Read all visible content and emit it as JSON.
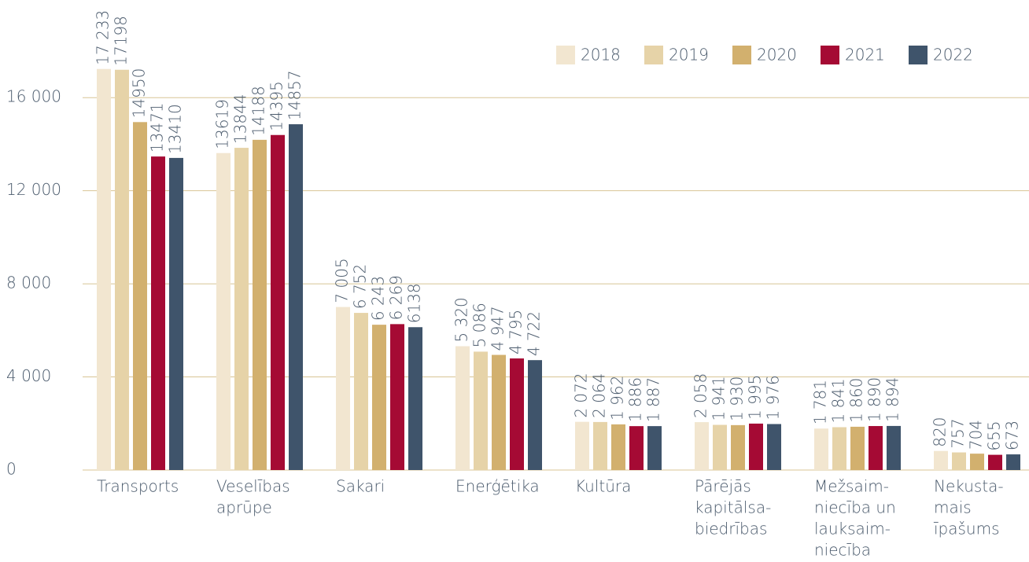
{
  "chart_data": {
    "type": "bar",
    "categories": [
      [
        "Transports"
      ],
      [
        "Veselības",
        "aprūpe"
      ],
      [
        "Sakari"
      ],
      [
        "Enerģētika"
      ],
      [
        "Kultūra"
      ],
      [
        "Pārējās",
        "kapitālsa-",
        "biedrības"
      ],
      [
        "Mežsaim-",
        "niecība un",
        "lauksaim-",
        "niecība"
      ],
      [
        "Nekusta-",
        "mais",
        "īpašums"
      ]
    ],
    "series": [
      {
        "name": "2018",
        "color": "#f2e6d0",
        "values": [
          17233,
          13619,
          7005,
          5320,
          2072,
          2058,
          1781,
          820
        ],
        "value_labels": [
          "17 233",
          "13619",
          "7 005",
          "5 320",
          "2 072",
          "2 058",
          "1 781",
          "820"
        ]
      },
      {
        "name": "2019",
        "color": "#e6d3a8",
        "values": [
          17198,
          13844,
          6752,
          5086,
          2064,
          1941,
          1841,
          757
        ],
        "value_labels": [
          "17198",
          "13844",
          "6 752",
          "5 086",
          "2 064",
          "1 941",
          "1 841",
          "757"
        ]
      },
      {
        "name": "2020",
        "color": "#d2b06e",
        "values": [
          14950,
          14188,
          6243,
          4947,
          1962,
          1930,
          1860,
          704
        ],
        "value_labels": [
          "14950",
          "14188",
          "6 243",
          "4 947",
          "1 962",
          "1 930",
          "1 860",
          "704"
        ]
      },
      {
        "name": "2021",
        "color": "#a50a34",
        "values": [
          13471,
          14395,
          6269,
          4795,
          1886,
          1995,
          1890,
          655
        ],
        "value_labels": [
          "13471",
          "14395",
          "6 269",
          "4 795",
          "1 886",
          "1 995",
          "1 890",
          "655"
        ]
      },
      {
        "name": "2022",
        "color": "#3f546b",
        "values": [
          13410,
          14857,
          6138,
          4722,
          1887,
          1976,
          1894,
          673
        ],
        "value_labels": [
          "13410",
          "14857",
          "6138",
          "4 722",
          "1 887",
          "1 976",
          "1 894",
          "673"
        ]
      }
    ],
    "ylim": [
      0,
      18000
    ],
    "yticks": [
      0,
      {
        "value": 4000,
        "label": "4 000"
      },
      {
        "value": 8000,
        "label": "8 000"
      },
      {
        "value": 12000,
        "label": "12 000"
      },
      {
        "value": 16000,
        "label": "16 000"
      }
    ],
    "grid": true,
    "legend": "top-right"
  }
}
